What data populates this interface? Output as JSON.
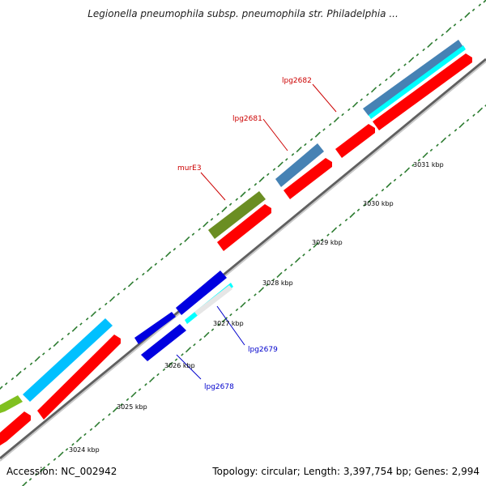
{
  "title": "Legionella pneumophila subsp. pneumophila str. Philadelphia ...",
  "footer": {
    "accession": "Accession: NC_002942",
    "summary": "Topology: circular; Length: 3,397,754 bp; Genes: 2,994"
  },
  "colors": {
    "backbone": "#808080",
    "cds_red": "#ff0000",
    "gene_blue": "#0000e0",
    "cyan": "#00ffff",
    "sky": "#00c0ff",
    "steel": "#4682b4",
    "olive": "#6b8e23",
    "lime": "#80c020",
    "tick_green": "#2e7d32",
    "label_red": "#cc0000",
    "label_blue": "#0000cc"
  },
  "scale_ticks": [
    "3024 kbp",
    "3025 kbp",
    "3026 kbp",
    "3027 kbp",
    "3028 kbp",
    "3029 kbp",
    "3030 kbp",
    "3031 kbp"
  ],
  "gene_labels": [
    {
      "id": "lpg2678",
      "text": "lpg2678",
      "color": "blue"
    },
    {
      "id": "lpg2679",
      "text": "lpg2679",
      "color": "blue"
    },
    {
      "id": "murE3",
      "text": "murE3",
      "color": "red"
    },
    {
      "id": "lpg2681",
      "text": "lpg2681",
      "color": "red"
    },
    {
      "id": "lpg2682",
      "text": "lpg2682",
      "color": "red"
    }
  ]
}
